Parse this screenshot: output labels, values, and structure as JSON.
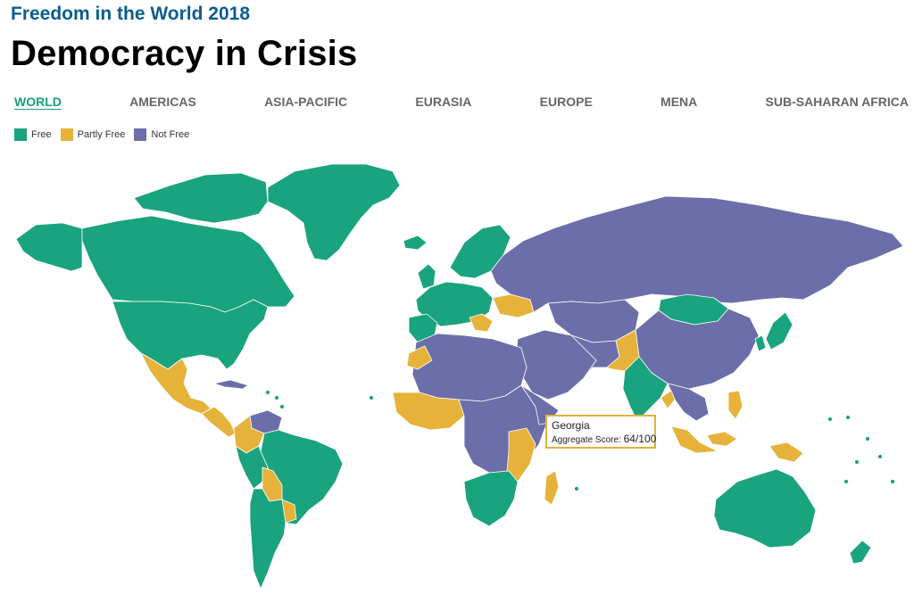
{
  "header": {
    "subtitle": "Freedom in the World 2018",
    "title": "Democracy in Crisis"
  },
  "tabs": [
    {
      "label": "WORLD",
      "active": true
    },
    {
      "label": "AMERICAS",
      "active": false
    },
    {
      "label": "ASIA-PACIFIC",
      "active": false
    },
    {
      "label": "EURASIA",
      "active": false
    },
    {
      "label": "EUROPE",
      "active": false
    },
    {
      "label": "MENA",
      "active": false
    },
    {
      "label": "SUB-SAHARAN AFRICA",
      "active": false
    }
  ],
  "legend": [
    {
      "label": "Free",
      "color": "#1aa37f"
    },
    {
      "label": "Partly Free",
      "color": "#e6b23a"
    },
    {
      "label": "Not Free",
      "color": "#6b6ea8"
    }
  ],
  "tooltip": {
    "country": "Georgia",
    "score_label": "Aggregate Score:",
    "score_value": "64/100"
  },
  "colors": {
    "free": "#1aa37f",
    "partly_free": "#e6b23a",
    "not_free": "#6b6ea8",
    "active_tab": "#1a9e7f",
    "title_blue": "#0b5c8e"
  }
}
